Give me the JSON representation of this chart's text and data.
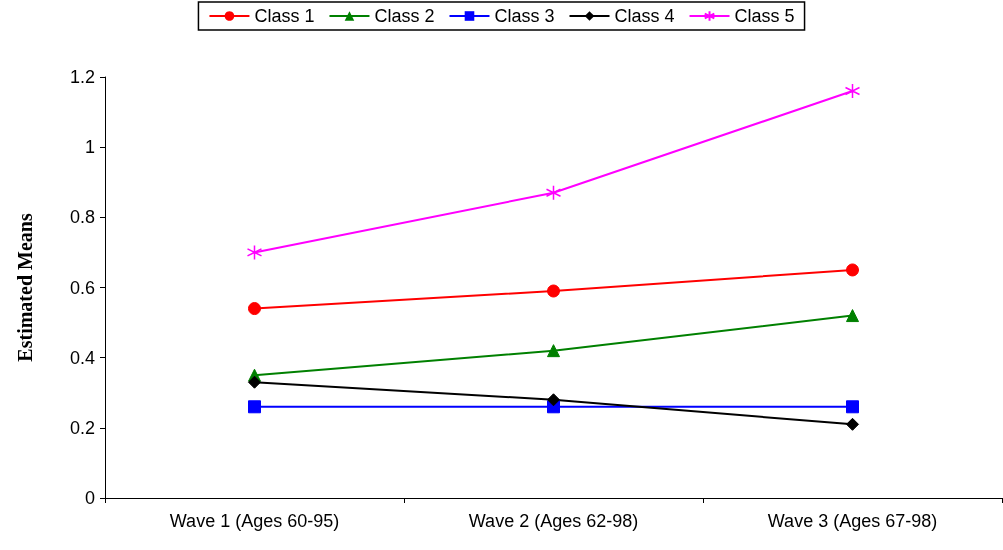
{
  "chart_data": {
    "type": "line",
    "ylabel": "Estimated Means",
    "categories": [
      "Wave 1 (Ages 60-95)",
      "Wave 2 (Ages 62-98)",
      "Wave 3 (Ages 67-98)"
    ],
    "series": [
      {
        "name": "Class 1",
        "color": "#ff0000",
        "marker": "circle",
        "values": [
          0.54,
          0.59,
          0.65
        ]
      },
      {
        "name": "Class 2",
        "color": "#008000",
        "marker": "triangle",
        "values": [
          0.35,
          0.42,
          0.52
        ]
      },
      {
        "name": "Class 3",
        "color": "#0000ff",
        "marker": "square",
        "values": [
          0.26,
          0.26,
          0.26
        ]
      },
      {
        "name": "Class 4",
        "color": "#000000",
        "marker": "diamond",
        "values": [
          0.33,
          0.28,
          0.21
        ]
      },
      {
        "name": "Class 5",
        "color": "#ff00ff",
        "marker": "star",
        "values": [
          0.7,
          0.87,
          1.16
        ]
      }
    ],
    "ylim": [
      0,
      1.2
    ],
    "yticks": [
      0,
      0.2,
      0.4,
      0.6,
      0.8,
      1,
      1.2
    ],
    "grid": false,
    "legend": "top",
    "line_style": "solid"
  }
}
